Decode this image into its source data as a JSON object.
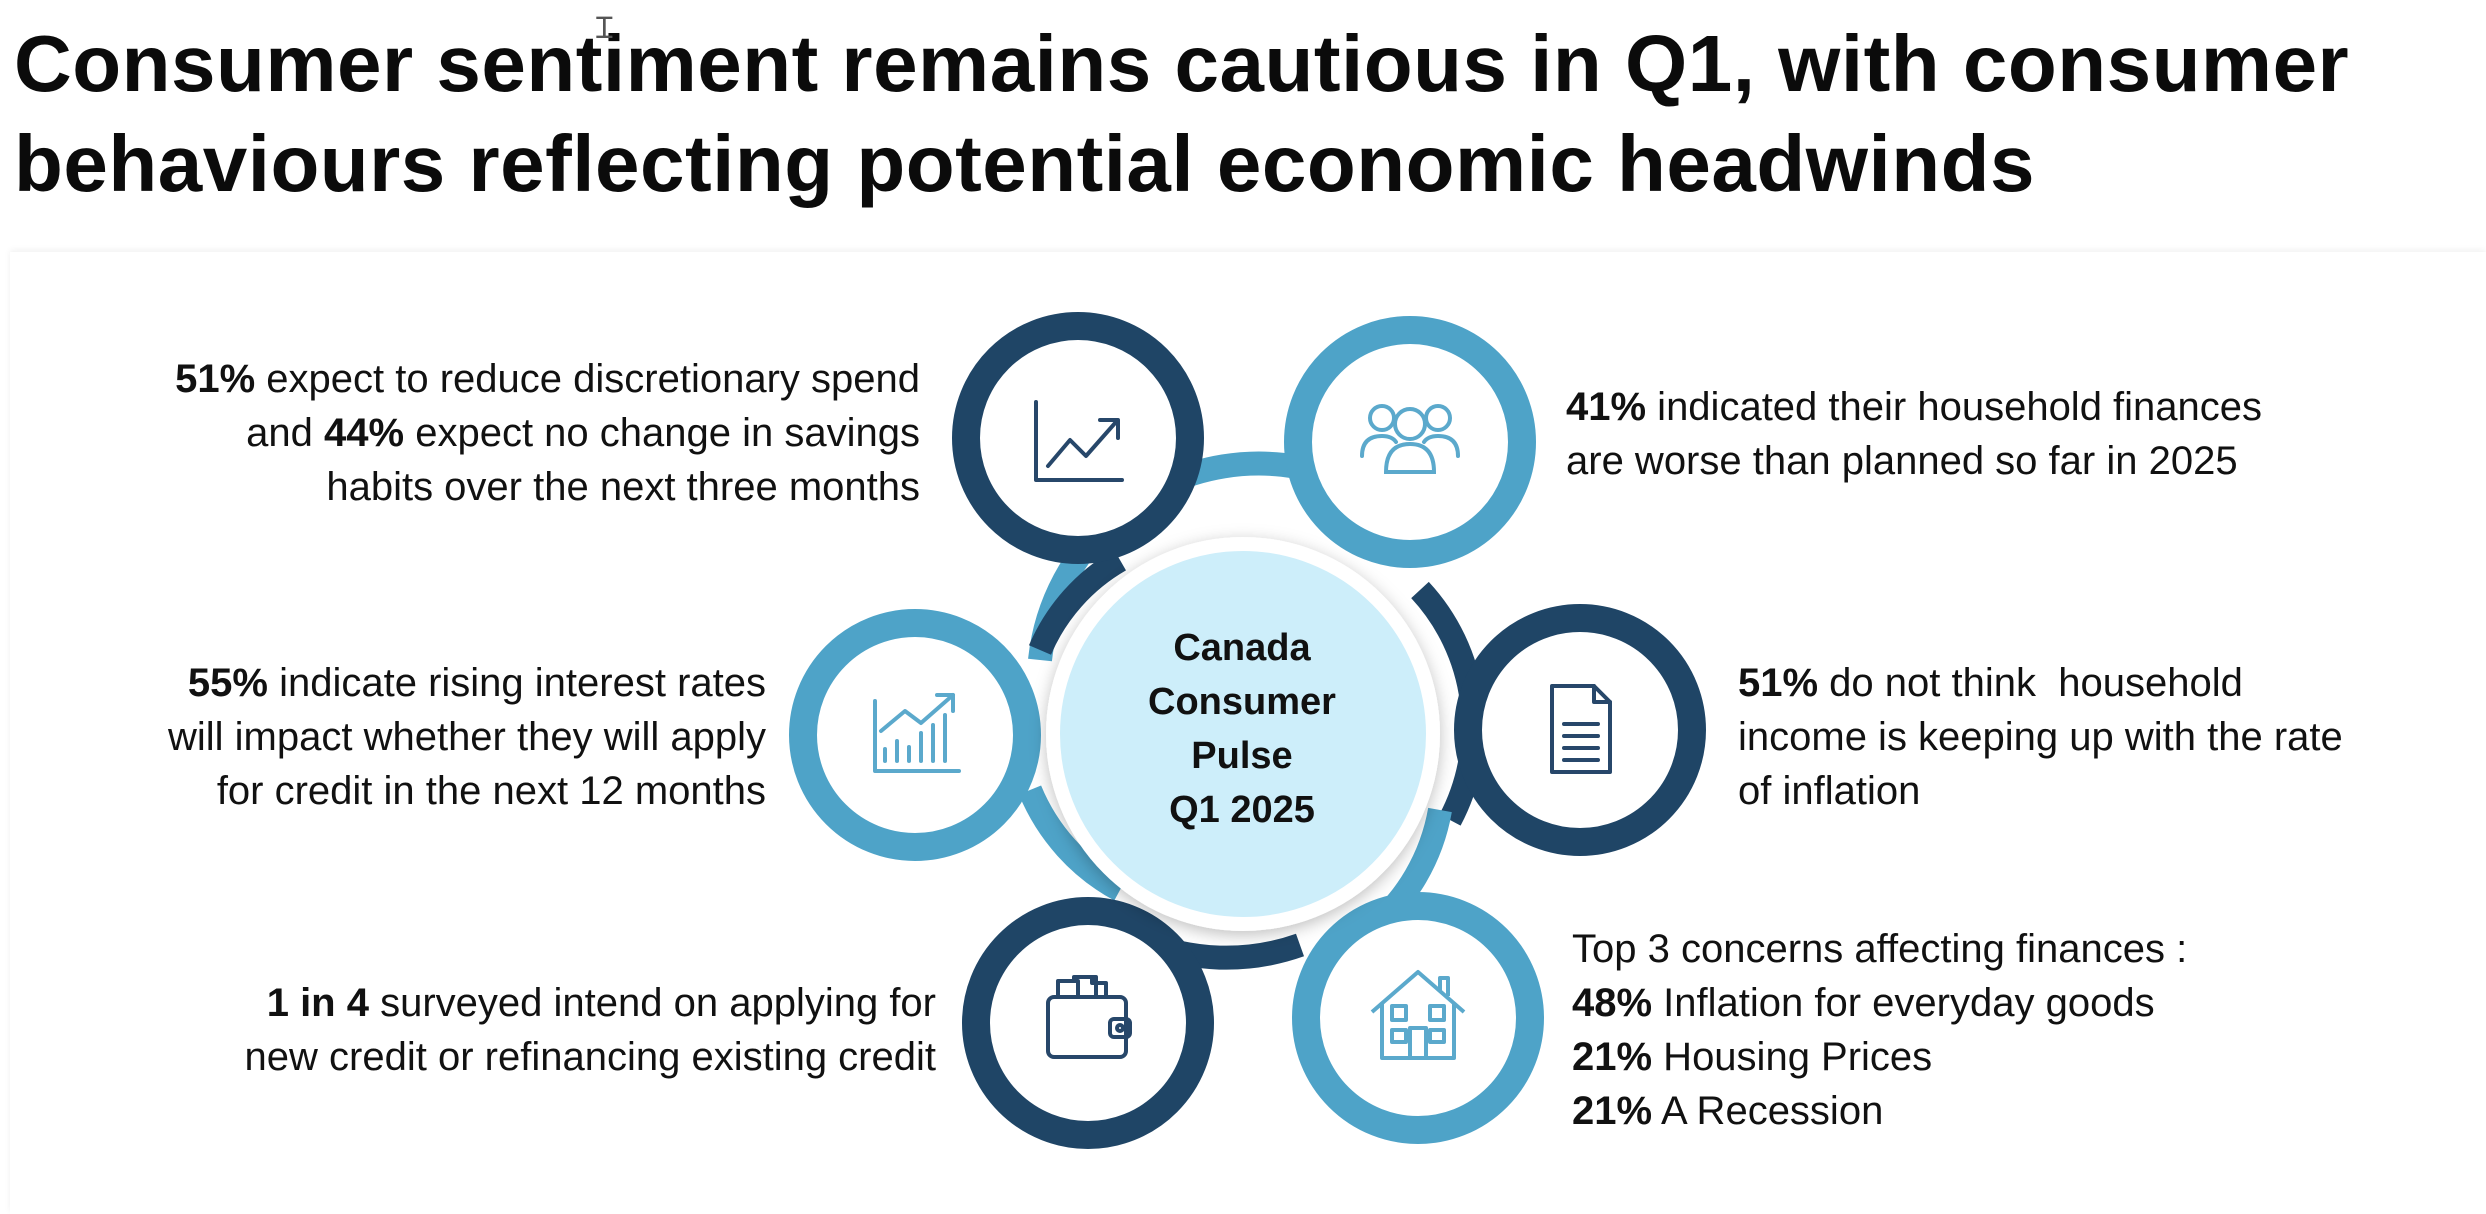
{
  "title": {
    "line1": "Consumer sentiment remains cautious in Q1, with consumer",
    "line2": "behaviours reflecting potential economic headwinds"
  },
  "center": {
    "line1": "Canada",
    "line2": "Consumer",
    "line3": "Pulse",
    "line4": "Q1 2025"
  },
  "colors": {
    "dark_navy": "#1f4566",
    "light_blue": "#4ea3c8",
    "center_fill": "#cdeefa",
    "icon_dark": "#27476a",
    "icon_light": "#5ba9cc"
  },
  "nodes": [
    {
      "icon": "trend-up-chart-icon",
      "ring": "dark"
    },
    {
      "icon": "people-group-icon",
      "ring": "light"
    },
    {
      "icon": "bar-growth-chart-icon",
      "ring": "light"
    },
    {
      "icon": "document-icon",
      "ring": "dark"
    },
    {
      "icon": "wallet-icon",
      "ring": "dark"
    },
    {
      "icon": "house-icon",
      "ring": "light"
    }
  ],
  "stats": {
    "discretionary": {
      "b1": "51%",
      "t1": " expect to reduce discretionary spend",
      "t2a": "and ",
      "b2": "44%",
      "t2b": " expect no change in savings",
      "t3": "habits over the next three months"
    },
    "household": {
      "b1": "41%",
      "t1": " indicated their household finances",
      "t2": "are worse than planned so far in 2025"
    },
    "interest": {
      "b1": "55%",
      "t1": " indicate rising interest rates",
      "t2": "will impact whether they will apply",
      "t3": "for credit in the next 12 months"
    },
    "inflation": {
      "b1": "51%",
      "t1": " do not think  household",
      "t2": "income is keeping up with the rate",
      "t3": "of inflation"
    },
    "credit": {
      "b1": "1 in 4",
      "t1": " surveyed intend on applying for",
      "t2": "new credit or refinancing existing credit"
    },
    "concerns": {
      "heading": "Top 3 concerns affecting finances :",
      "items": [
        {
          "pct": "48%",
          "label": " Inflation for everyday goods"
        },
        {
          "pct": "21%",
          "label": " Housing Prices"
        },
        {
          "pct": "21%",
          "label": " A Recession"
        }
      ]
    }
  }
}
